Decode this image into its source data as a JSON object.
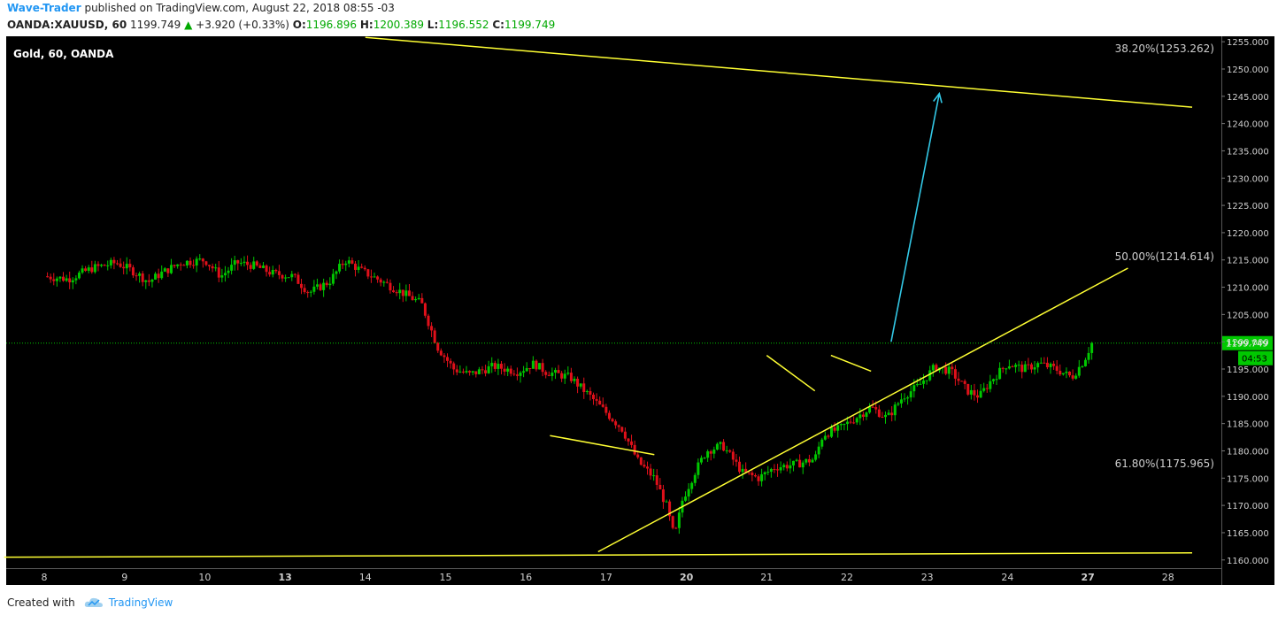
{
  "header": {
    "author": "Wave-Trader",
    "published_text": "published on TradingView.com, August 22, 2018 08:55 -03",
    "symbol": "OANDA:XAUUSD, 60",
    "last": "1199.749",
    "change": "+3.920 (+0.33%)",
    "o_label": "O:",
    "o_val": "1196.896",
    "h_label": "H:",
    "h_val": "1200.389",
    "l_label": "L:",
    "l_val": "1196.552",
    "c_label": "C:",
    "c_val": "1199.749"
  },
  "footer": {
    "created_with": "Created with",
    "brand": "TradingView"
  },
  "colors": {
    "background": "#000000",
    "up": "#00c800",
    "down": "#e0101a",
    "trendline": "#ffff33",
    "arrow": "#33c8e6",
    "price_tag": "#00c800"
  },
  "chart_data": {
    "type": "candlestick",
    "legend": "Gold, 60, OANDA",
    "x_ticks": [
      "8",
      "9",
      "10",
      "13",
      "14",
      "15",
      "16",
      "17",
      "20",
      "21",
      "22",
      "23",
      "24",
      "27",
      "28"
    ],
    "x_bold_ticks": [
      "13",
      "20",
      "27"
    ],
    "y_ticks": [
      "1255.000",
      "1250.000",
      "1245.000",
      "1240.000",
      "1235.000",
      "1230.000",
      "1225.000",
      "1220.000",
      "1215.000",
      "1210.000",
      "1205.000",
      "1200.000",
      "1195.000",
      "1190.000",
      "1185.000",
      "1180.000",
      "1175.000",
      "1170.000",
      "1165.000",
      "1160.000"
    ],
    "ylim": [
      1158.5,
      1256.0
    ],
    "current_price": "1199.749",
    "countdown": "04:53",
    "fib_labels": [
      {
        "text": "38.20%(1253.262)",
        "price": 1253.262
      },
      {
        "text": "50.00%(1214.614)",
        "price": 1214.614
      },
      {
        "text": "61.80%(1175.965)",
        "price": 1175.965
      }
    ],
    "trendlines": [
      {
        "name": "upper-resistance",
        "from": [
          4.0,
          1255.8
        ],
        "to": [
          14.3,
          1243.0
        ]
      },
      {
        "name": "rising-support",
        "from": [
          6.9,
          1161.5
        ],
        "to": [
          13.5,
          1213.5
        ]
      },
      {
        "name": "bottom-support",
        "from": [
          -0.5,
          1160.5
        ],
        "to": [
          14.3,
          1161.3
        ]
      },
      {
        "name": "flag-1",
        "from": [
          6.3,
          1182.8
        ],
        "to": [
          7.6,
          1179.3
        ]
      },
      {
        "name": "flag-2",
        "from": [
          9.0,
          1197.5
        ],
        "to": [
          9.6,
          1191.0
        ]
      },
      {
        "name": "flag-3",
        "from": [
          9.8,
          1197.5
        ],
        "to": [
          10.3,
          1194.6
        ]
      }
    ],
    "arrow": {
      "from": [
        10.55,
        1200.0
      ],
      "to": [
        11.15,
        1245.5
      ]
    },
    "path": [
      [
        0.0,
        1212.0
      ],
      [
        0.3,
        1211.5
      ],
      [
        0.6,
        1213.5
      ],
      [
        0.9,
        1214.5
      ],
      [
        1.1,
        1213.0
      ],
      [
        1.3,
        1211.0
      ],
      [
        1.45,
        1212.5
      ],
      [
        1.7,
        1214.5
      ],
      [
        2.0,
        1215.0
      ],
      [
        2.2,
        1212.0
      ],
      [
        2.4,
        1214.5
      ],
      [
        2.6,
        1214.0
      ],
      [
        2.85,
        1212.5
      ],
      [
        3.1,
        1212.0
      ],
      [
        3.3,
        1209.0
      ],
      [
        3.55,
        1211.0
      ],
      [
        3.75,
        1215.0
      ],
      [
        3.95,
        1213.0
      ],
      [
        4.15,
        1211.5
      ],
      [
        4.4,
        1209.5
      ],
      [
        4.7,
        1207.0
      ],
      [
        4.9,
        1199.0
      ],
      [
        5.1,
        1195.0
      ],
      [
        5.3,
        1194.0
      ],
      [
        5.6,
        1195.5
      ],
      [
        5.9,
        1194.5
      ],
      [
        6.1,
        1196.0
      ],
      [
        6.25,
        1194.5
      ],
      [
        6.55,
        1193.5
      ],
      [
        6.8,
        1190.0
      ],
      [
        7.0,
        1187.0
      ],
      [
        7.2,
        1184.0
      ],
      [
        7.4,
        1178.0
      ],
      [
        7.6,
        1175.0
      ],
      [
        7.75,
        1170.0
      ],
      [
        7.85,
        1164.0
      ],
      [
        7.95,
        1171.0
      ],
      [
        8.1,
        1176.0
      ],
      [
        8.25,
        1180.0
      ],
      [
        8.45,
        1181.0
      ],
      [
        8.7,
        1176.0
      ],
      [
        8.9,
        1175.0
      ],
      [
        9.1,
        1177.0
      ],
      [
        9.35,
        1177.5
      ],
      [
        9.6,
        1178.5
      ],
      [
        9.7,
        1183.0
      ],
      [
        9.9,
        1184.0
      ],
      [
        10.1,
        1186.0
      ],
      [
        10.3,
        1188.0
      ],
      [
        10.5,
        1186.0
      ],
      [
        10.7,
        1190.0
      ],
      [
        10.9,
        1192.0
      ],
      [
        11.1,
        1195.5
      ],
      [
        11.3,
        1194.5
      ],
      [
        11.5,
        1191.0
      ],
      [
        11.65,
        1190.0
      ],
      [
        11.8,
        1193.0
      ],
      [
        12.0,
        1196.0
      ],
      [
        12.2,
        1195.0
      ],
      [
        12.4,
        1196.0
      ],
      [
        12.6,
        1195.0
      ],
      [
        12.8,
        1193.5
      ],
      [
        12.95,
        1196.5
      ],
      [
        13.05,
        1199.7
      ]
    ]
  }
}
